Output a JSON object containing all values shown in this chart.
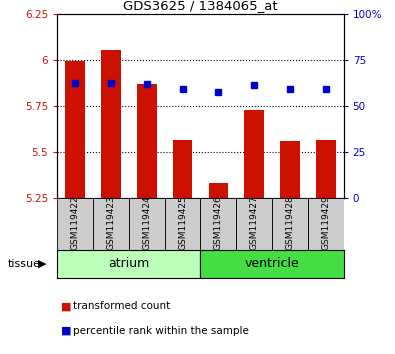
{
  "title": "GDS3625 / 1384065_at",
  "samples": [
    "GSM119422",
    "GSM119423",
    "GSM119424",
    "GSM119425",
    "GSM119426",
    "GSM119427",
    "GSM119428",
    "GSM119429"
  ],
  "red_values": [
    5.995,
    6.055,
    5.87,
    5.565,
    5.335,
    5.73,
    5.56,
    5.565
  ],
  "blue_values": [
    5.875,
    5.875,
    5.87,
    5.845,
    5.825,
    5.865,
    5.845,
    5.845
  ],
  "ylim_left": [
    5.25,
    6.25
  ],
  "ylim_right": [
    0,
    100
  ],
  "yticks_left": [
    5.25,
    5.5,
    5.75,
    6.0,
    6.25
  ],
  "yticks_right": [
    0,
    25,
    50,
    75,
    100
  ],
  "ytick_labels_left": [
    "5.25",
    "5.5",
    "5.75",
    "6",
    "6.25"
  ],
  "ytick_labels_right": [
    "0",
    "25",
    "50",
    "75",
    "100%"
  ],
  "bar_color": "#cc1100",
  "dot_color": "#0000cc",
  "bar_width": 0.55,
  "atrium_color": "#bbffbb",
  "ventricle_color": "#44dd44",
  "sample_box_color": "#cccccc",
  "legend_items": [
    {
      "label": "transformed count",
      "color": "#cc1100"
    },
    {
      "label": "percentile rank within the sample",
      "color": "#0000cc"
    }
  ],
  "tissue_label": "tissue",
  "tick_label_color_left": "#cc1100",
  "tick_label_color_right": "#0000cc",
  "grid_yticks": [
    5.5,
    5.75,
    6.0
  ]
}
